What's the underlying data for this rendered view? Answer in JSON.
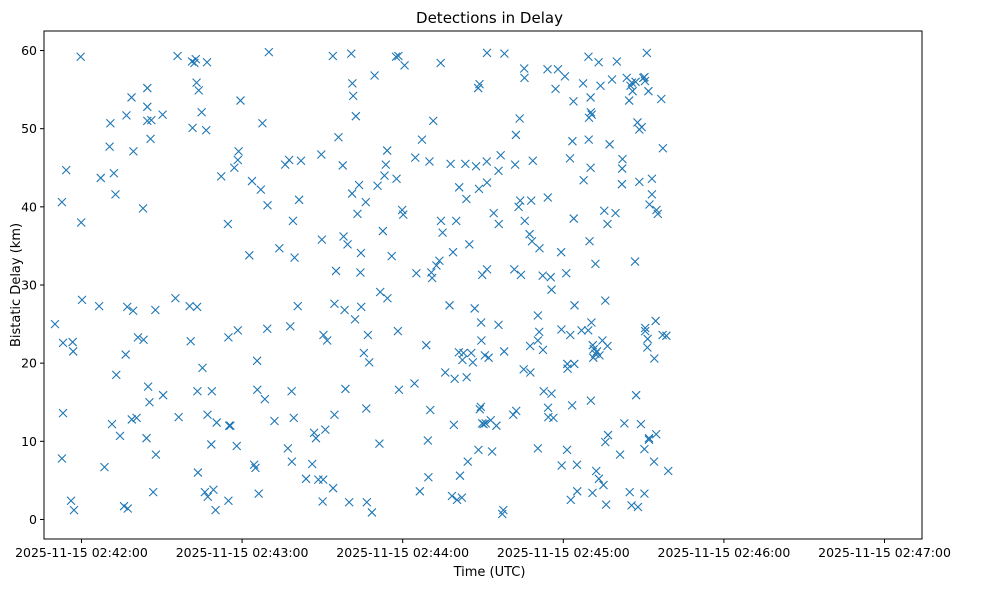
{
  "chart_data": {
    "type": "scatter",
    "title": "Detections in Delay",
    "xlabel": "Time (UTC)",
    "ylabel": "Bistatic Delay (km)",
    "marker": "x",
    "color": "#1f77b4",
    "xlim_seconds": [
      -14,
      314
    ],
    "ylim": [
      -2.5,
      62.5
    ],
    "x_ticks": [
      {
        "value": 0,
        "label": "2025-11-15 02:42:00"
      },
      {
        "value": 60,
        "label": "2025-11-15 02:43:00"
      },
      {
        "value": 120,
        "label": "2025-11-15 02:44:00"
      },
      {
        "value": 180,
        "label": "2025-11-15 02:45:00"
      },
      {
        "value": 240,
        "label": "2025-11-15 02:46:00"
      },
      {
        "value": 300,
        "label": "2025-11-15 02:47:00"
      }
    ],
    "y_ticks": [
      0,
      10,
      20,
      30,
      40,
      50,
      60
    ],
    "x_unit": "seconds after 2025-11-15 02:42:00 UTC",
    "points": [
      [
        -9.9,
        25
      ],
      [
        -7.3,
        40.6
      ],
      [
        -6.9,
        22.6
      ],
      [
        -6.9,
        13.6
      ],
      [
        -7.3,
        7.8
      ],
      [
        -5.7,
        44.7
      ],
      [
        -3.9,
        2.4
      ],
      [
        -3.3,
        22.7
      ],
      [
        -3.1,
        21.5
      ],
      [
        -2.8,
        1.2
      ],
      [
        -0.3,
        59.2
      ],
      [
        -0.1,
        38
      ],
      [
        0.2,
        28.1
      ],
      [
        6.6,
        27.3
      ],
      [
        7.2,
        43.7
      ],
      [
        8.6,
        6.7
      ],
      [
        10.5,
        47.7
      ],
      [
        10.8,
        50.7
      ],
      [
        11.4,
        12.2
      ],
      [
        12.1,
        44.3
      ],
      [
        12.7,
        41.6
      ],
      [
        13.0,
        18.5
      ],
      [
        14.4,
        10.7
      ],
      [
        15.9,
        1.7
      ],
      [
        16.5,
        21.1
      ],
      [
        16.8,
        51.7
      ],
      [
        17.1,
        27.2
      ],
      [
        17.3,
        1.4
      ],
      [
        18.7,
        54
      ],
      [
        18.8,
        12.8
      ],
      [
        19.3,
        26.7
      ],
      [
        19.4,
        47.1
      ],
      [
        20.6,
        13
      ],
      [
        21.1,
        23.3
      ],
      [
        23.0,
        39.8
      ],
      [
        23.2,
        23
      ],
      [
        24.6,
        55.2
      ],
      [
        24.6,
        52.8
      ],
      [
        24.6,
        51
      ],
      [
        24.9,
        17
      ],
      [
        24.3,
        10.4
      ],
      [
        25.4,
        15
      ],
      [
        25.8,
        48.7
      ],
      [
        26.1,
        51.1
      ],
      [
        26.8,
        3.5
      ],
      [
        27.6,
        26.8
      ],
      [
        27.8,
        8.3
      ],
      [
        30.3,
        51.8
      ],
      [
        30.5,
        15.9
      ],
      [
        35.1,
        28.3
      ],
      [
        35.9,
        59.3
      ],
      [
        36.3,
        13.1
      ],
      [
        40.4,
        27.3
      ],
      [
        40.8,
        22.8
      ],
      [
        41.3,
        58.6
      ],
      [
        41.5,
        50.1
      ],
      [
        42.2,
        58.4
      ],
      [
        42.7,
        58.9
      ],
      [
        43.0,
        55.9
      ],
      [
        43.2,
        27.2
      ],
      [
        43.3,
        16.4
      ],
      [
        43.5,
        6
      ],
      [
        43.8,
        54.9
      ],
      [
        44.9,
        52.1
      ],
      [
        45.2,
        19.4
      ],
      [
        46.1,
        3.5
      ],
      [
        46.6,
        49.8
      ],
      [
        46.9,
        58.5
      ],
      [
        47.1,
        13.4
      ],
      [
        47.2,
        2.9
      ],
      [
        48.5,
        9.6
      ],
      [
        48.7,
        16.4
      ],
      [
        49.3,
        3.8
      ],
      [
        50.1,
        1.2
      ],
      [
        50.5,
        12.4
      ],
      [
        52.2,
        43.9
      ],
      [
        54.7,
        37.8
      ],
      [
        54.9,
        23.3
      ],
      [
        54.9,
        2.4
      ],
      [
        55.2,
        12
      ],
      [
        55.6,
        12
      ],
      [
        57.1,
        45
      ],
      [
        58.0,
        9.4
      ],
      [
        58.4,
        46
      ],
      [
        58.4,
        24.2
      ],
      [
        58.7,
        47.1
      ],
      [
        59.4,
        53.6
      ],
      [
        62.7,
        33.8
      ],
      [
        63.7,
        43.3
      ],
      [
        64.5,
        7
      ],
      [
        65.0,
        6.6
      ],
      [
        65.6,
        20.3
      ],
      [
        65.7,
        16.6
      ],
      [
        66.2,
        3.3
      ],
      [
        67.0,
        42.2
      ],
      [
        67.6,
        50.7
      ],
      [
        68.5,
        15.4
      ],
      [
        69.4,
        24.4
      ],
      [
        69.5,
        40.2
      ],
      [
        70.0,
        59.8
      ],
      [
        72.1,
        12.6
      ],
      [
        73.9,
        34.7
      ],
      [
        76.1,
        45.4
      ],
      [
        77.1,
        9.1
      ],
      [
        77.6,
        46
      ],
      [
        78.0,
        24.7
      ],
      [
        78.6,
        7.4
      ],
      [
        78.5,
        16.4
      ],
      [
        79.0,
        38.2
      ],
      [
        79.3,
        13
      ],
      [
        79.6,
        33.5
      ],
      [
        80.8,
        27.3
      ],
      [
        81.3,
        40.9
      ],
      [
        82.0,
        45.9
      ],
      [
        83.9,
        5.2
      ],
      [
        86.2,
        7.1
      ],
      [
        86.9,
        11.1
      ],
      [
        87.6,
        10.4
      ],
      [
        88.5,
        5.1
      ],
      [
        89.6,
        46.7
      ],
      [
        89.8,
        35.8
      ],
      [
        90.1,
        2.3
      ],
      [
        90.3,
        5.1
      ],
      [
        90.4,
        23.6
      ],
      [
        91.1,
        11.5
      ],
      [
        91.8,
        22.9
      ],
      [
        93.9,
        59.3
      ],
      [
        94.0,
        4
      ],
      [
        94.5,
        13.4
      ],
      [
        94.5,
        27.6
      ],
      [
        95.1,
        31.8
      ],
      [
        96.0,
        48.9
      ],
      [
        97.6,
        45.3
      ],
      [
        97.9,
        36.2
      ],
      [
        98.3,
        26.8
      ],
      [
        98.6,
        16.7
      ],
      [
        99.4,
        35.2
      ],
      [
        100.0,
        2.2
      ],
      [
        100.8,
        59.6
      ],
      [
        101.1,
        41.7
      ],
      [
        101.2,
        55.8
      ],
      [
        101.5,
        54.2
      ],
      [
        102.2,
        25.6
      ],
      [
        102.5,
        51.6
      ],
      [
        103.1,
        39.1
      ],
      [
        103.7,
        42.8
      ],
      [
        104.4,
        34.1
      ],
      [
        104.2,
        31.6
      ],
      [
        104.5,
        27.2
      ],
      [
        105.5,
        21.3
      ],
      [
        106.2,
        40.6
      ],
      [
        106.4,
        14.2
      ],
      [
        106.6,
        2.2
      ],
      [
        107.0,
        23.6
      ],
      [
        107.5,
        20.1
      ],
      [
        108.5,
        0.9
      ],
      [
        109.5,
        56.8
      ],
      [
        110.6,
        42.7
      ],
      [
        111.3,
        9.7
      ],
      [
        111.6,
        29.1
      ],
      [
        112.6,
        36.9
      ],
      [
        113.2,
        44
      ],
      [
        113.7,
        45.4
      ],
      [
        114.3,
        28.3
      ],
      [
        114.2,
        47.2
      ],
      [
        115.9,
        33.7
      ],
      [
        117.5,
        59.2
      ],
      [
        117.7,
        43.6
      ],
      [
        118.2,
        24.1
      ],
      [
        118.6,
        16.6
      ],
      [
        118.4,
        59.3
      ],
      [
        119.8,
        39.6
      ],
      [
        120.2,
        39
      ],
      [
        120.7,
        58.1
      ],
      [
        124.4,
        17.4
      ],
      [
        124.7,
        46.3
      ],
      [
        125.1,
        31.5
      ],
      [
        126.4,
        3.6
      ],
      [
        127.2,
        48.6
      ],
      [
        128.8,
        22.3
      ],
      [
        129.4,
        10.1
      ],
      [
        129.6,
        5.4
      ],
      [
        130.0,
        45.8
      ],
      [
        130.3,
        14
      ],
      [
        130.7,
        31.6
      ],
      [
        131.0,
        30.9
      ],
      [
        131.4,
        51
      ],
      [
        132.6,
        32.5
      ],
      [
        133.7,
        33.1
      ],
      [
        134.2,
        58.4
      ],
      [
        134.3,
        38.2
      ],
      [
        134.9,
        36.7
      ],
      [
        135.9,
        18.8
      ],
      [
        137.5,
        27.4
      ],
      [
        137.9,
        45.5
      ],
      [
        138.4,
        3
      ],
      [
        138.8,
        34.2
      ],
      [
        139.1,
        12.1
      ],
      [
        139.4,
        18
      ],
      [
        140.0,
        38.2
      ],
      [
        140.3,
        2.5
      ],
      [
        141.1,
        42.5
      ],
      [
        141.0,
        21.4
      ],
      [
        141.4,
        5.6
      ],
      [
        142.1,
        2.8
      ],
      [
        142.3,
        20.4
      ],
      [
        142.7,
        21.3
      ],
      [
        143.8,
        41
      ],
      [
        143.4,
        45.5
      ],
      [
        144.3,
        7.4
      ],
      [
        143.9,
        18.2
      ],
      [
        144.9,
        35.2
      ],
      [
        145.6,
        21.3
      ],
      [
        146.2,
        20.1
      ],
      [
        146.9,
        27
      ],
      [
        147.4,
        45.2
      ],
      [
        148.3,
        8.9
      ],
      [
        148.2,
        55.2
      ],
      [
        148.5,
        42.3
      ],
      [
        148.7,
        55.7
      ],
      [
        149.3,
        25.2
      ],
      [
        148.8,
        14.1
      ],
      [
        149.2,
        14.4
      ],
      [
        149.4,
        22.9
      ],
      [
        149.7,
        31.3
      ],
      [
        149.7,
        12.3
      ],
      [
        150.2,
        12.2
      ],
      [
        150.7,
        21
      ],
      [
        151.0,
        12.3
      ],
      [
        151.5,
        59.7
      ],
      [
        151.4,
        45.8
      ],
      [
        151.5,
        43.1
      ],
      [
        151.5,
        32
      ],
      [
        152.1,
        20.7
      ],
      [
        152.9,
        12.7
      ],
      [
        153.4,
        8.7
      ],
      [
        154.0,
        39.2
      ],
      [
        155.0,
        12
      ],
      [
        155.8,
        44.6
      ],
      [
        155.8,
        24.9
      ],
      [
        155.9,
        37.8
      ],
      [
        156.6,
        46.6
      ],
      [
        157.2,
        0.7
      ],
      [
        157.6,
        1.2
      ],
      [
        157.9,
        21.5
      ],
      [
        158.0,
        59.6
      ],
      [
        161.7,
        32
      ],
      [
        161.3,
        13.4
      ],
      [
        162.0,
        45.4
      ],
      [
        162.3,
        49.2
      ],
      [
        162.4,
        13.9
      ],
      [
        163.3,
        40
      ],
      [
        163.7,
        51.3
      ],
      [
        163.9,
        40.8
      ],
      [
        164.2,
        31.3
      ],
      [
        165.2,
        19.2
      ],
      [
        165.4,
        57.7
      ],
      [
        165.5,
        56.5
      ],
      [
        165.6,
        38.2
      ],
      [
        167.4,
        36.5
      ],
      [
        167.6,
        22.2
      ],
      [
        167.7,
        18.8
      ],
      [
        168.0,
        40.8
      ],
      [
        168.3,
        35.6
      ],
      [
        168.6,
        45.9
      ],
      [
        170.5,
        26.1
      ],
      [
        170.5,
        9.1
      ],
      [
        170.5,
        22.9
      ],
      [
        171.0,
        24
      ],
      [
        171.1,
        34.7
      ],
      [
        172.3,
        31.2
      ],
      [
        172.4,
        21.7
      ],
      [
        172.7,
        16.4
      ],
      [
        174.1,
        57.6
      ],
      [
        174.2,
        41.2
      ],
      [
        174.3,
        14.3
      ],
      [
        174.4,
        13.1
      ],
      [
        175.3,
        31
      ],
      [
        175.6,
        29.4
      ],
      [
        175.6,
        16.1
      ],
      [
        176.3,
        13
      ],
      [
        177.1,
        55.1
      ],
      [
        178.0,
        57.6
      ],
      [
        179.2,
        34.2
      ],
      [
        179.3,
        24.3
      ],
      [
        179.4,
        6.9
      ],
      [
        180.6,
        56.7
      ],
      [
        181.1,
        31.5
      ],
      [
        181.4,
        8.9
      ],
      [
        181.6,
        19.3
      ],
      [
        181.5,
        19.9
      ],
      [
        182.5,
        46.2
      ],
      [
        182.6,
        23.6
      ],
      [
        182.8,
        2.5
      ],
      [
        183.4,
        48.4
      ],
      [
        183.3,
        14.6
      ],
      [
        183.8,
        53.5
      ],
      [
        183.9,
        38.5
      ],
      [
        184.2,
        27.4
      ],
      [
        184.1,
        19.9
      ],
      [
        185.1,
        7
      ],
      [
        185.2,
        3.6
      ],
      [
        186.8,
        24.2
      ],
      [
        187.4,
        55.8
      ],
      [
        187.6,
        43.4
      ],
      [
        189.3,
        24.2
      ],
      [
        189.8,
        35.6
      ],
      [
        189.5,
        48.6
      ],
      [
        190.2,
        45
      ],
      [
        189.4,
        59.2
      ],
      [
        190.2,
        54
      ],
      [
        189.6,
        51.4
      ],
      [
        190.3,
        52.1
      ],
      [
        190.5,
        25.2
      ],
      [
        190.3,
        15.2
      ],
      [
        190.9,
        3.4
      ],
      [
        190.6,
        51.8
      ],
      [
        191.0,
        22.3
      ],
      [
        191.2,
        20.7
      ],
      [
        191.4,
        21.8
      ],
      [
        192.0,
        21.2
      ],
      [
        192.0,
        32.7
      ],
      [
        192.6,
        21.5
      ],
      [
        192.3,
        6.2
      ],
      [
        193.2,
        58.5
      ],
      [
        193.5,
        21
      ],
      [
        193.3,
        5.2
      ],
      [
        193.9,
        55.5
      ],
      [
        194.6,
        22.9
      ],
      [
        195.0,
        4.4
      ],
      [
        195.3,
        39.5
      ],
      [
        195.7,
        28
      ],
      [
        195.7,
        9.9
      ],
      [
        196.0,
        1.9
      ],
      [
        196.5,
        37.8
      ],
      [
        196.5,
        22.2
      ],
      [
        196.7,
        10.8
      ],
      [
        197.3,
        48
      ],
      [
        198.2,
        56.3
      ],
      [
        199.5,
        39.2
      ],
      [
        200.0,
        58.6
      ],
      [
        201.2,
        8.3
      ],
      [
        202.0,
        44.9
      ],
      [
        202.1,
        46.1
      ],
      [
        201.9,
        42.9
      ],
      [
        202.8,
        12.3
      ],
      [
        203.7,
        56.5
      ],
      [
        204.6,
        53.6
      ],
      [
        204.8,
        3.5
      ],
      [
        205.1,
        55.5
      ],
      [
        205.5,
        1.8
      ],
      [
        205.6,
        55.9
      ],
      [
        205.9,
        54.8
      ],
      [
        207.0,
        56
      ],
      [
        206.8,
        33
      ],
      [
        207.2,
        15.9
      ],
      [
        207.7,
        50.8
      ],
      [
        207.9,
        1.6
      ],
      [
        208.4,
        43.2
      ],
      [
        208.4,
        49.9
      ],
      [
        209.0,
        12.2
      ],
      [
        209.3,
        50.2
      ],
      [
        209.9,
        56.5
      ],
      [
        210.3,
        3.3
      ],
      [
        210.3,
        9
      ],
      [
        210.3,
        56.6
      ],
      [
        210.5,
        56.1
      ],
      [
        210.6,
        24.5
      ],
      [
        210.6,
        24.1
      ],
      [
        211.4,
        22
      ],
      [
        211.5,
        23.1
      ],
      [
        211.2,
        59.7
      ],
      [
        212.0,
        10.4
      ],
      [
        212.0,
        10.2
      ],
      [
        211.8,
        54.8
      ],
      [
        212.2,
        40.3
      ],
      [
        213.1,
        41.6
      ],
      [
        213.1,
        43.6
      ],
      [
        213.9,
        7.4
      ],
      [
        214.0,
        20.6
      ],
      [
        214.5,
        25.4
      ],
      [
        214.7,
        10.9
      ],
      [
        214.8,
        39.6
      ],
      [
        215.3,
        39.1
      ],
      [
        216.6,
        53.8
      ],
      [
        217.1,
        23.6
      ],
      [
        217.2,
        47.5
      ],
      [
        218.5,
        23.5
      ],
      [
        219.2,
        6.2
      ]
    ]
  }
}
